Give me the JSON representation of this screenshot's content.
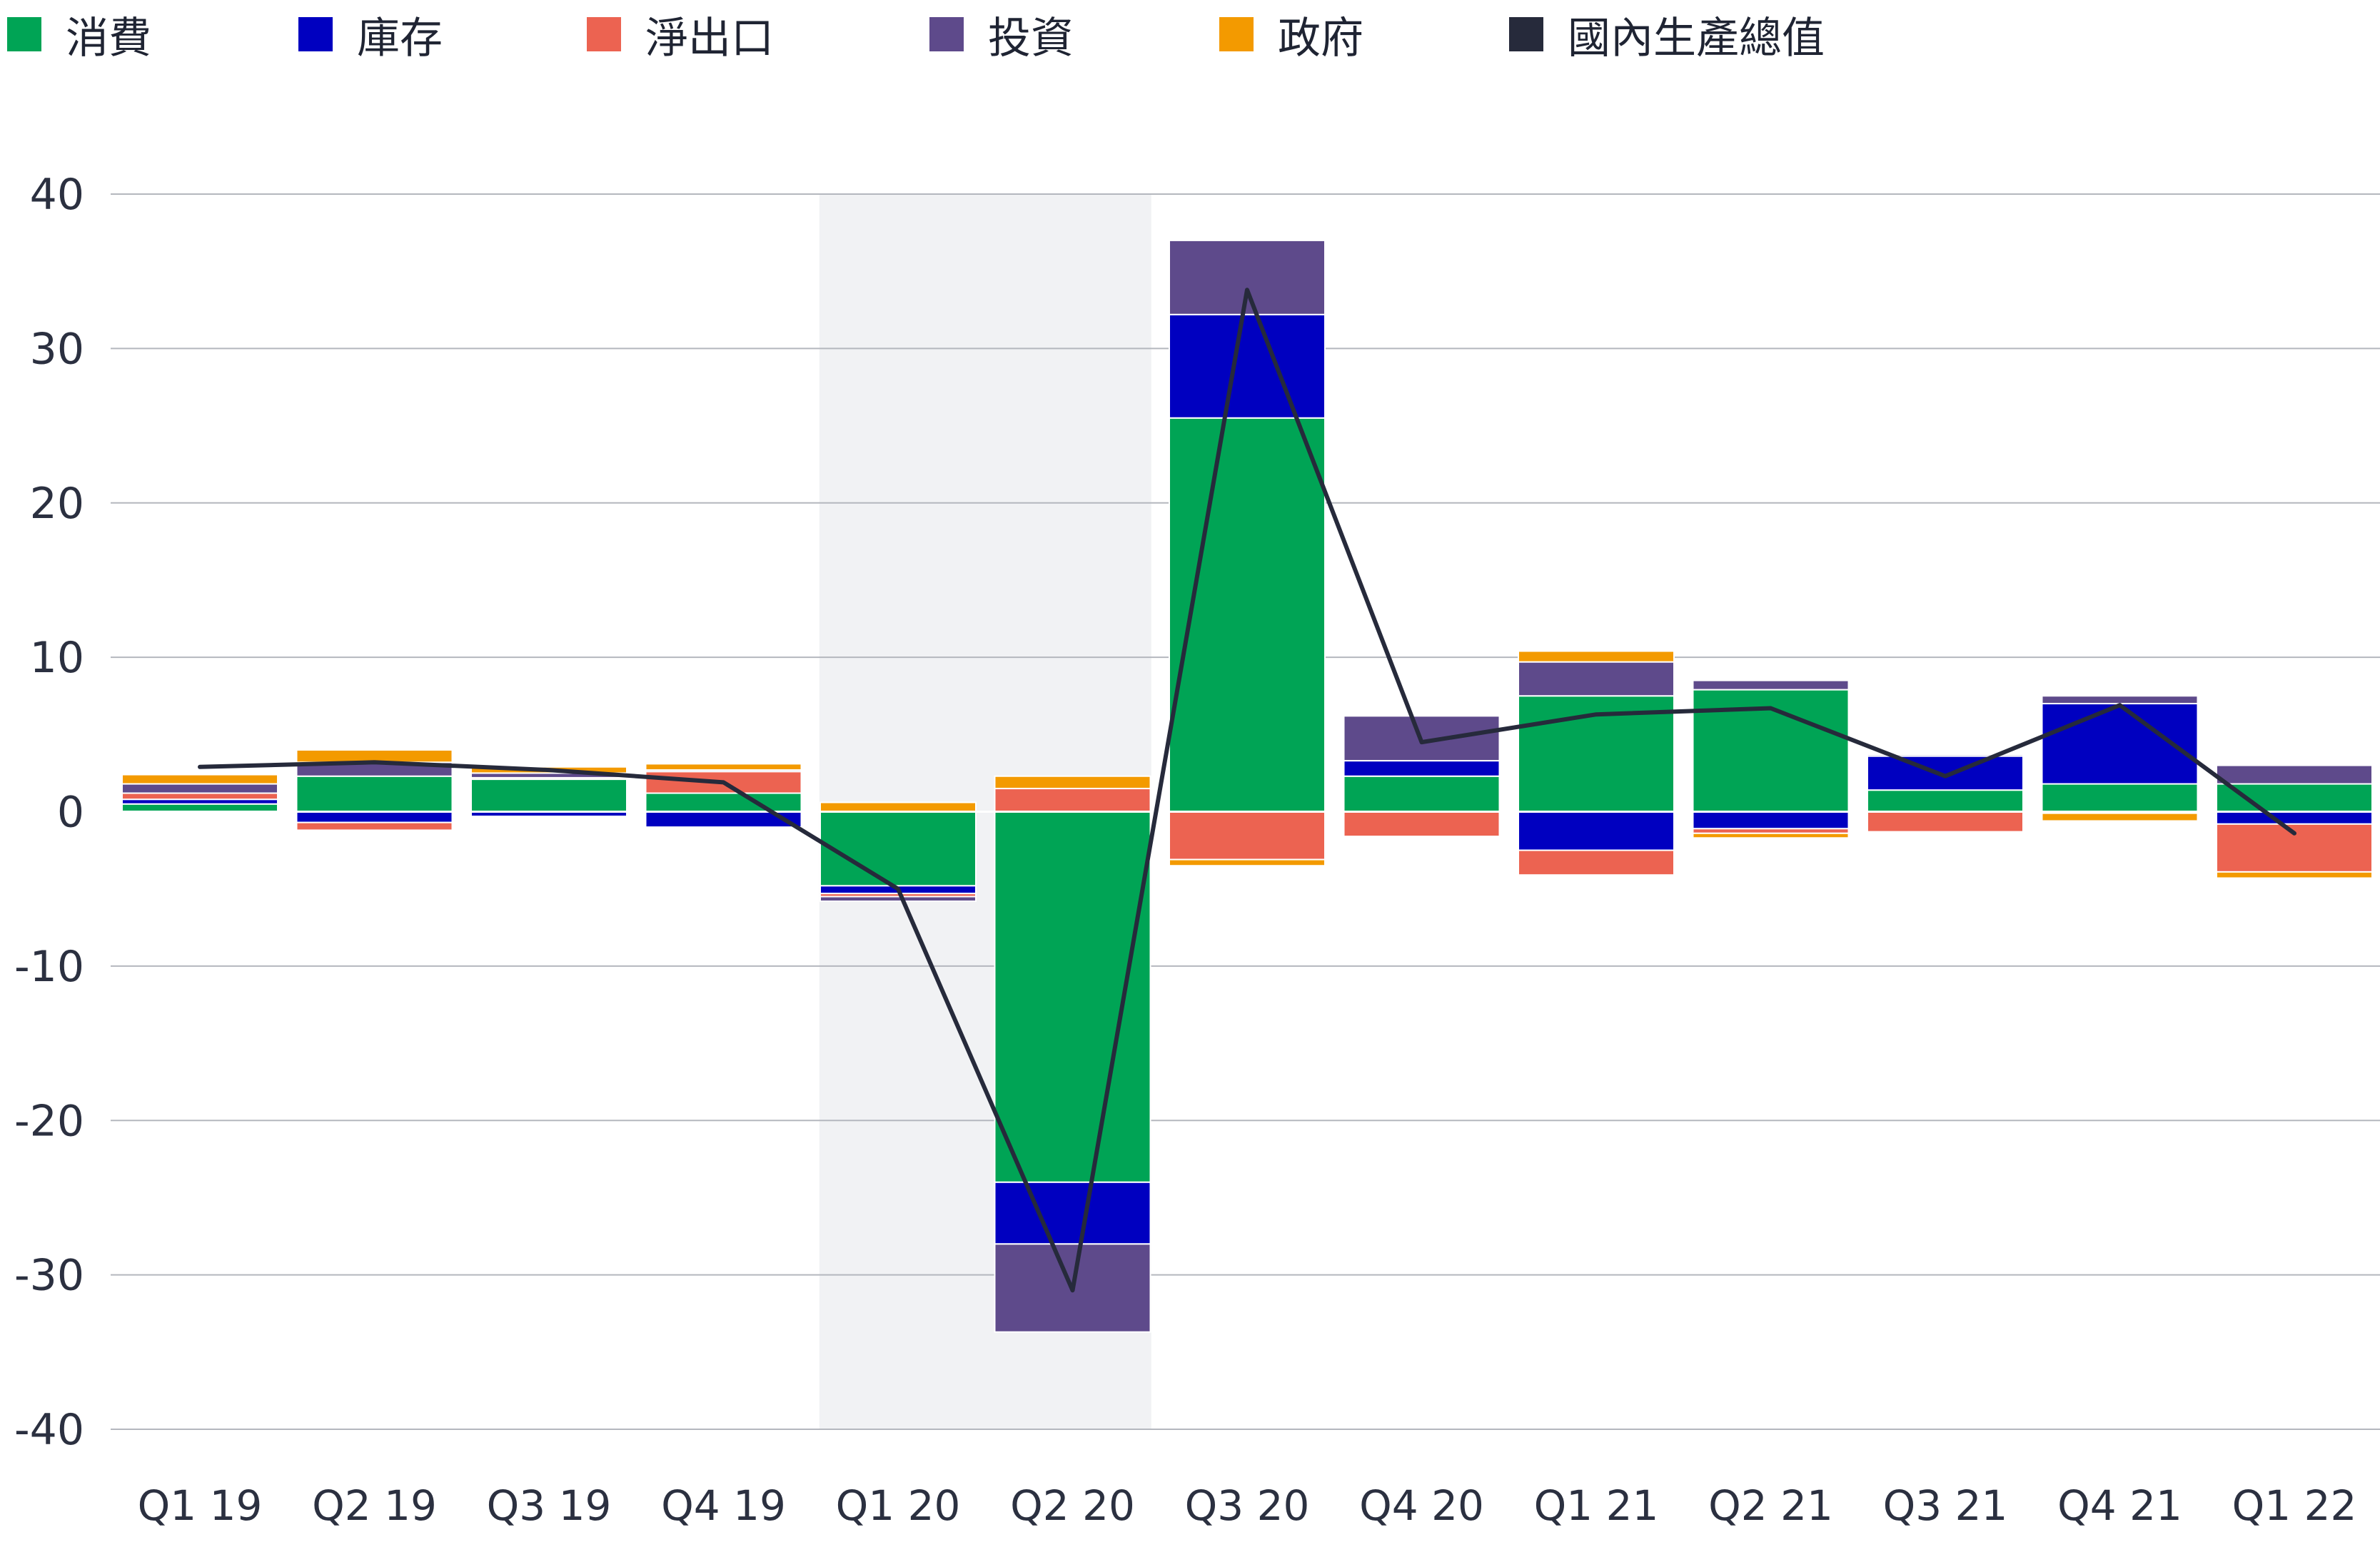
{
  "chart_data": {
    "type": "bar",
    "stacked": true,
    "title": "",
    "xlabel": "",
    "ylabel": "",
    "ylim": [
      -40,
      40
    ],
    "yticks": [
      40,
      30,
      20,
      10,
      0,
      -10,
      -20,
      -30,
      -40
    ],
    "ytick_labels": [
      "40",
      "30",
      "20",
      "10",
      "0",
      "-10",
      "-20",
      "-30",
      "-40"
    ],
    "grid": true,
    "legend_position": "top-left",
    "categories": [
      "Q1 19",
      "Q2 19",
      "Q3 19",
      "Q4 19",
      "Q1 20",
      "Q2 20",
      "Q3 20",
      "Q4 20",
      "Q1 21",
      "Q2 21",
      "Q3 21",
      "Q4 21",
      "Q1 22"
    ],
    "highlight_range": [
      "Q1 20",
      "Q2 20"
    ],
    "series": [
      {
        "name": "消費",
        "kind": "bar",
        "color": "#00a455",
        "values": [
          0.5,
          2.3,
          2.1,
          1.2,
          -4.8,
          -24.0,
          25.5,
          2.3,
          7.5,
          7.9,
          1.4,
          1.8,
          1.8
        ]
      },
      {
        "name": "庫存",
        "kind": "bar",
        "color": "#0000c0",
        "values": [
          0.3,
          -0.7,
          -0.3,
          -1.0,
          -0.5,
          -4.0,
          6.7,
          1.0,
          -2.5,
          -1.1,
          2.2,
          5.2,
          -0.8
        ]
      },
      {
        "name": "淨出口",
        "kind": "bar",
        "color": "#ec6351",
        "values": [
          0.4,
          -0.5,
          0.1,
          1.4,
          -0.2,
          1.5,
          -3.1,
          -1.6,
          -1.6,
          -0.3,
          -1.3,
          -0.1,
          -3.1
        ]
      },
      {
        "name": "投資",
        "kind": "bar",
        "color": "#5e4a8b",
        "values": [
          0.6,
          0.9,
          0.3,
          0.1,
          -0.3,
          -5.7,
          4.8,
          2.9,
          2.2,
          0.6,
          0.1,
          0.5,
          1.2
        ]
      },
      {
        "name": "政府",
        "kind": "bar",
        "color": "#f39a00",
        "values": [
          0.6,
          0.8,
          0.4,
          0.4,
          0.6,
          0.8,
          -0.4,
          0.0,
          0.7,
          -0.3,
          0.0,
          -0.5,
          -0.4
        ]
      },
      {
        "name": "國內生產總值",
        "kind": "line",
        "color": "#262a3b",
        "values": [
          2.9,
          3.2,
          2.7,
          1.9,
          -5.0,
          -31.0,
          33.8,
          4.5,
          6.3,
          6.7,
          2.3,
          6.9,
          -1.4
        ]
      }
    ]
  }
}
